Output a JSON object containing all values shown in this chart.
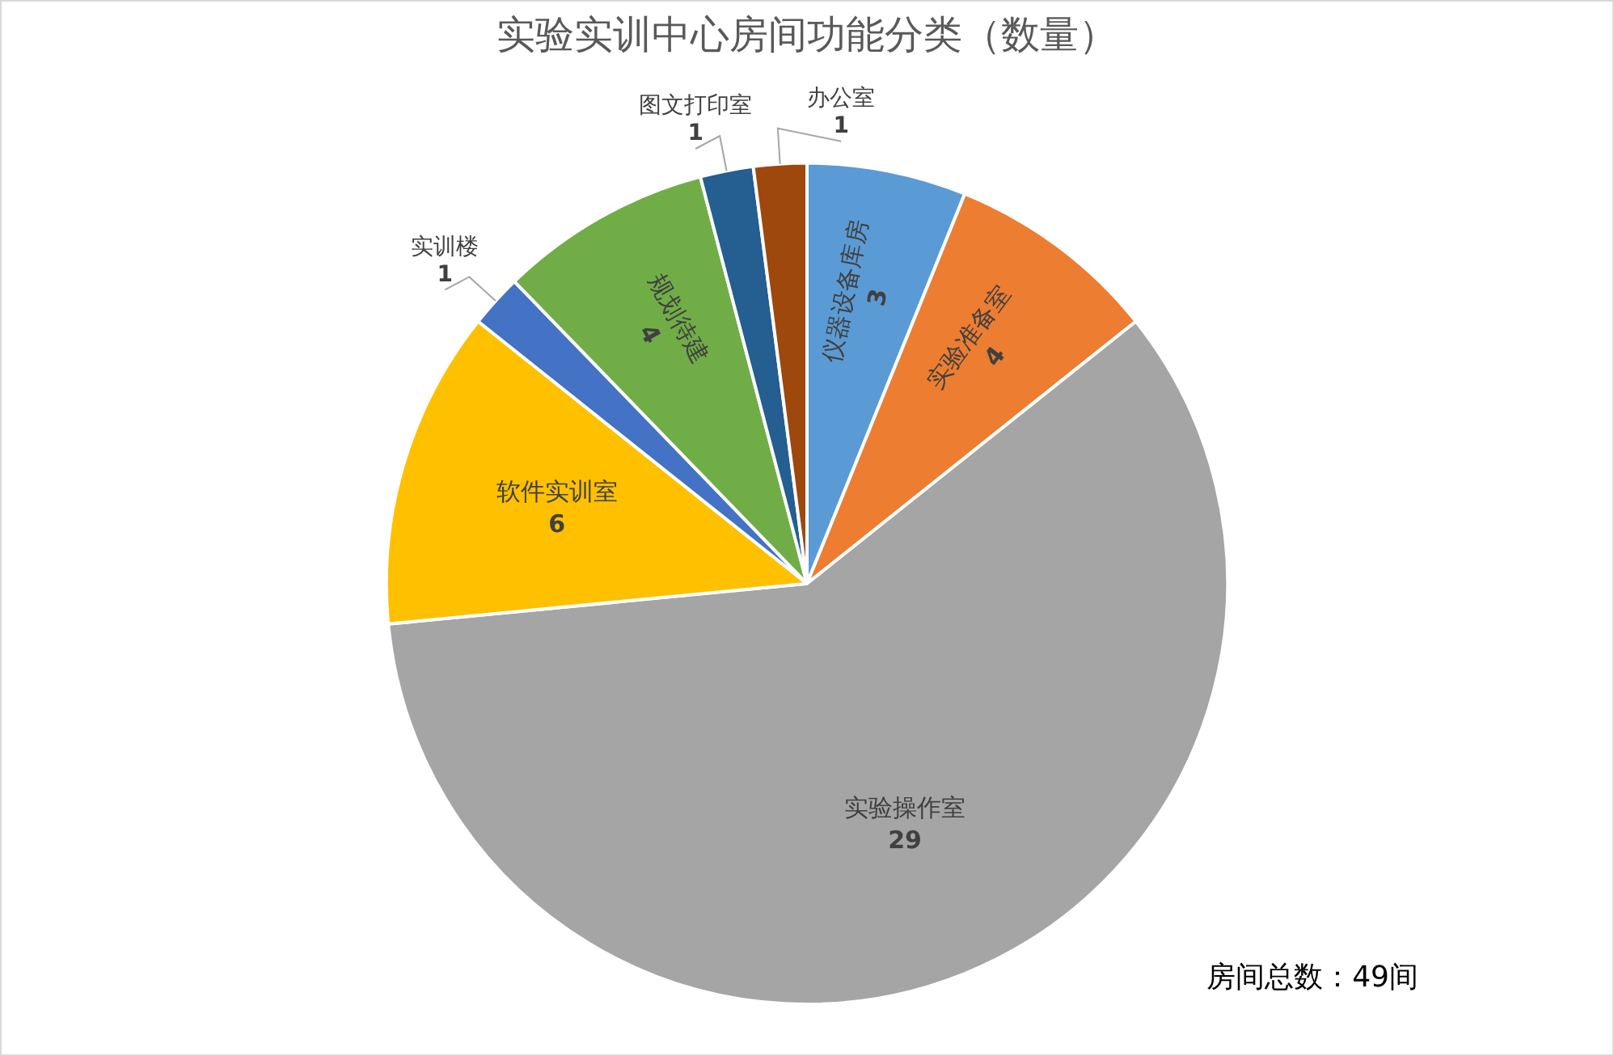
{
  "chart_data": {
    "type": "pie",
    "title": "实验实训中心房间功能分类（数量）",
    "categories": [
      "仪器设备库房",
      "实验准备室",
      "实验操作室",
      "软件实训室",
      "实训楼",
      "规划待建",
      "图文打印室",
      "办公室"
    ],
    "values": [
      3,
      4,
      29,
      6,
      1,
      4,
      1,
      1
    ],
    "colors": [
      "#5b9bd5",
      "#ed7d31",
      "#a5a5a5",
      "#ffc000",
      "#4472c4",
      "#70ad47",
      "#255e91",
      "#9e480e"
    ],
    "data_labels": true,
    "legend": false,
    "annotations": [
      "房间总数：49间"
    ]
  }
}
